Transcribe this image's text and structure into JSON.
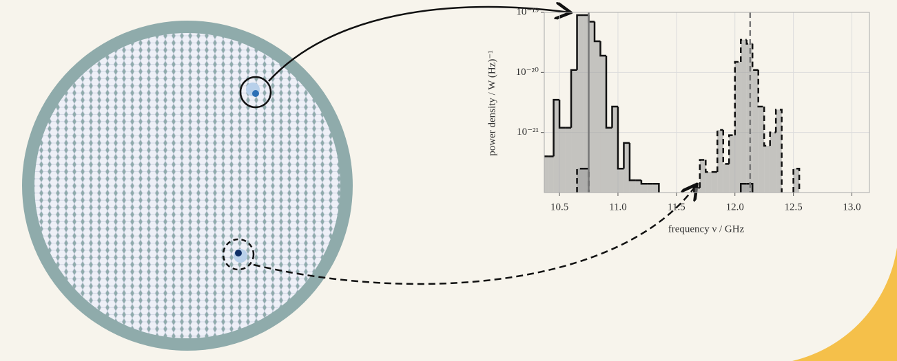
{
  "chart_data": {
    "type": "histogram",
    "y_label": "power density / W (Hz)⁻¹",
    "x_label": "frequency ν / GHz",
    "log_y": true,
    "grid": true,
    "xlim": [
      10.37,
      13.15
    ],
    "ylim": [
      1e-22,
      1e-19
    ],
    "xticks": [
      10.5,
      {
        "value": 11,
        "label": "11.0"
      },
      11.5,
      {
        "value": 12,
        "label": "12.0"
      },
      12.5,
      {
        "value": 13,
        "label": "13.0"
      }
    ],
    "yticks": [
      {
        "value": 1e-19,
        "label": "10⁻¹⁹"
      },
      {
        "value": 1e-20,
        "label": "10⁻²⁰"
      },
      {
        "value": 1e-21,
        "label": "10⁻²¹"
      }
    ],
    "bins": [
      10.35,
      10.4,
      10.45,
      10.5,
      10.55,
      10.6,
      10.65,
      10.7,
      10.75,
      10.8,
      10.85,
      10.9,
      10.95,
      11,
      11.05,
      11.1,
      11.15,
      11.2,
      11.25,
      11.3,
      11.35,
      11.4,
      11.45,
      11.5,
      11.55,
      11.6,
      11.65,
      11.7,
      11.75,
      11.8,
      11.85,
      11.9,
      11.95,
      12,
      12.05,
      12.1,
      12.15,
      12.2,
      12.25,
      12.3,
      12.35,
      12.4,
      12.45,
      12.5,
      12.55,
      12.6
    ],
    "series": [
      {
        "color": "#9a9a9a",
        "line_style": "solid",
        "values": [
          4e-22,
          4e-22,
          3.5e-21,
          1.2e-21,
          1.2e-21,
          1.1e-20,
          9e-20,
          9e-20,
          7e-20,
          3.3e-20,
          1.9e-20,
          1.2e-21,
          2.7e-21,
          2.5e-22,
          6.7e-22,
          1.6e-22,
          1.6e-22,
          1.4e-22,
          1.4e-22,
          1.4e-22,
          null,
          null,
          null,
          null,
          null,
          null,
          null,
          null,
          null,
          null,
          null,
          null,
          null,
          null,
          1.4e-22,
          1.4e-22,
          null,
          null,
          null,
          null,
          null,
          null,
          null,
          null,
          null
        ]
      },
      {
        "color": "#9a9a9a",
        "line_style": "dashed",
        "values": [
          null,
          null,
          null,
          null,
          null,
          null,
          2.5e-22,
          2.5e-22,
          null,
          null,
          null,
          null,
          null,
          null,
          null,
          null,
          null,
          null,
          null,
          null,
          null,
          null,
          null,
          null,
          null,
          null,
          1.2e-22,
          3.5e-22,
          2.2e-22,
          2.2e-22,
          1.1e-21,
          3e-22,
          9e-22,
          1.5e-20,
          3.5e-20,
          3e-20,
          1.1e-20,
          2.7e-21,
          6e-22,
          1e-21,
          2.4e-21,
          null,
          null,
          2.5e-22,
          null
        ]
      }
    ],
    "vlines": [
      {
        "value": 10.75,
        "line_style": "solid"
      },
      {
        "value": 12.13,
        "line_style": "dashed"
      }
    ]
  }
}
